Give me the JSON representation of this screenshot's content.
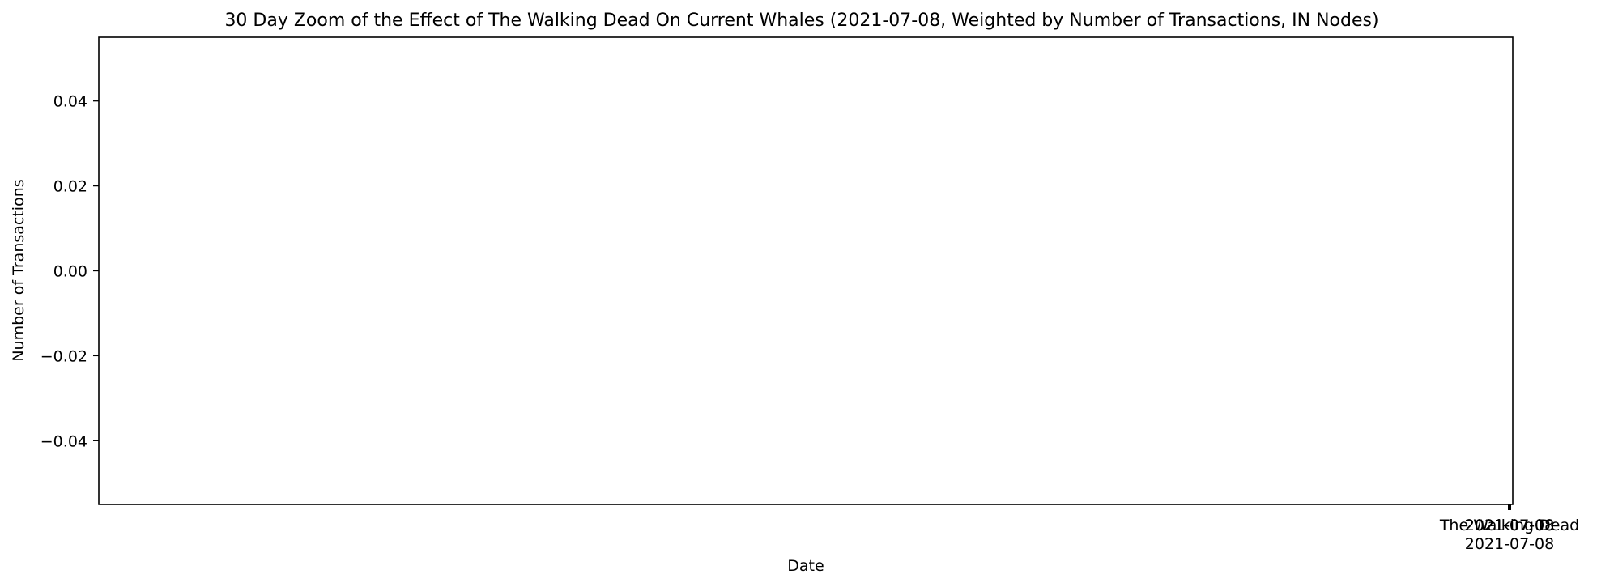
{
  "chart_data": {
    "type": "line",
    "title": "30 Day Zoom of the Effect of The Walking Dead On Current Whales (2021-07-08, Weighted by Number of Transactions, IN Nodes)",
    "xlabel": "Date",
    "ylabel": "Number of Transactions",
    "ylim": [
      -0.055,
      0.055
    ],
    "y_ticks": [
      0.04,
      0.02,
      0.0,
      -0.02,
      -0.04
    ],
    "y_tick_labels": [
      "0.04",
      "0.02",
      "0.00",
      "−0.02",
      "−0.04"
    ],
    "x_tick_labels": [
      {
        "line1": "2021-07-08",
        "line2": ""
      },
      {
        "line1": "2021-07-08",
        "line2": ""
      },
      {
        "line1": "2021-07-08",
        "line2": ""
      },
      {
        "line1": "The Walking Dead",
        "line2": "2021-07-08"
      }
    ],
    "series": [],
    "grid": false,
    "legend": "none",
    "colors": {
      "axes": "#000000",
      "background": "#ffffff"
    }
  }
}
